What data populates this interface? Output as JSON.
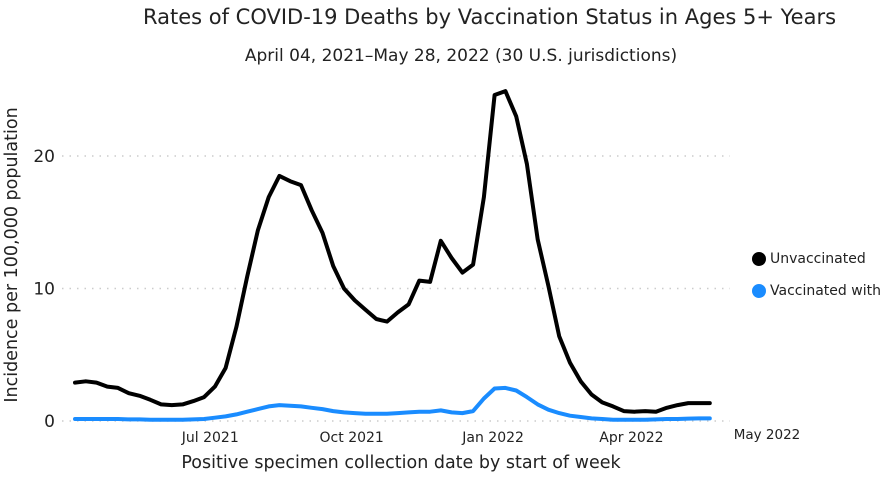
{
  "chart_data": {
    "type": "line",
    "title": "Rates of COVID-19 Deaths by Vaccination Status in Ages 5+ Years",
    "subtitle": "April 04, 2021–May 28, 2022 (30 U.S. jurisdictions)",
    "xlabel": "Positive specimen collection date by start of week",
    "ylabel": "Incidence per 100,000 population",
    "x_start": "2021-04-04",
    "x_step_days": 7,
    "ylim": [
      0,
      25
    ],
    "yticks": [
      0,
      10,
      20
    ],
    "xticks": [
      {
        "label": "Jul 2021",
        "day": 88
      },
      {
        "label": "Oct 2021",
        "day": 180
      },
      {
        "label": "Jan 2022",
        "day": 272
      },
      {
        "label": "Apr 2022",
        "day": 362
      },
      {
        "label": "May 2022",
        "day": 392
      }
    ],
    "grid": true,
    "legend_position": "right",
    "series": [
      {
        "name": "Unvaccinated",
        "color": "#000000",
        "values": [
          2.9,
          3.0,
          2.9,
          2.6,
          2.5,
          2.1,
          1.9,
          1.6,
          1.25,
          1.2,
          1.25,
          1.5,
          1.8,
          2.6,
          4.0,
          7.1,
          10.9,
          14.4,
          16.9,
          18.5,
          18.1,
          17.8,
          15.9,
          14.2,
          11.7,
          10.0,
          9.1,
          8.4,
          7.7,
          7.5,
          8.2,
          8.8,
          10.6,
          10.5,
          13.6,
          12.3,
          11.2,
          11.8,
          16.9,
          24.6,
          24.9,
          23.0,
          19.4,
          13.7,
          10.2,
          6.4,
          4.4,
          3.0,
          2.0,
          1.4,
          1.1,
          0.75,
          0.7,
          0.75,
          0.7,
          1.0,
          1.2,
          1.35,
          1.35,
          1.35
        ]
      },
      {
        "name": "Vaccinated with",
        "color": "#1a8cff",
        "values": [
          0.15,
          0.15,
          0.15,
          0.15,
          0.15,
          0.12,
          0.12,
          0.1,
          0.1,
          0.1,
          0.1,
          0.12,
          0.15,
          0.25,
          0.35,
          0.5,
          0.7,
          0.9,
          1.1,
          1.2,
          1.15,
          1.1,
          1.0,
          0.9,
          0.75,
          0.65,
          0.6,
          0.55,
          0.55,
          0.55,
          0.6,
          0.65,
          0.7,
          0.7,
          0.8,
          0.65,
          0.6,
          0.75,
          1.7,
          2.45,
          2.5,
          2.3,
          1.8,
          1.25,
          0.85,
          0.6,
          0.4,
          0.3,
          0.2,
          0.15,
          0.1,
          0.1,
          0.1,
          0.1,
          0.12,
          0.15,
          0.15,
          0.18,
          0.2,
          0.2
        ]
      }
    ]
  }
}
